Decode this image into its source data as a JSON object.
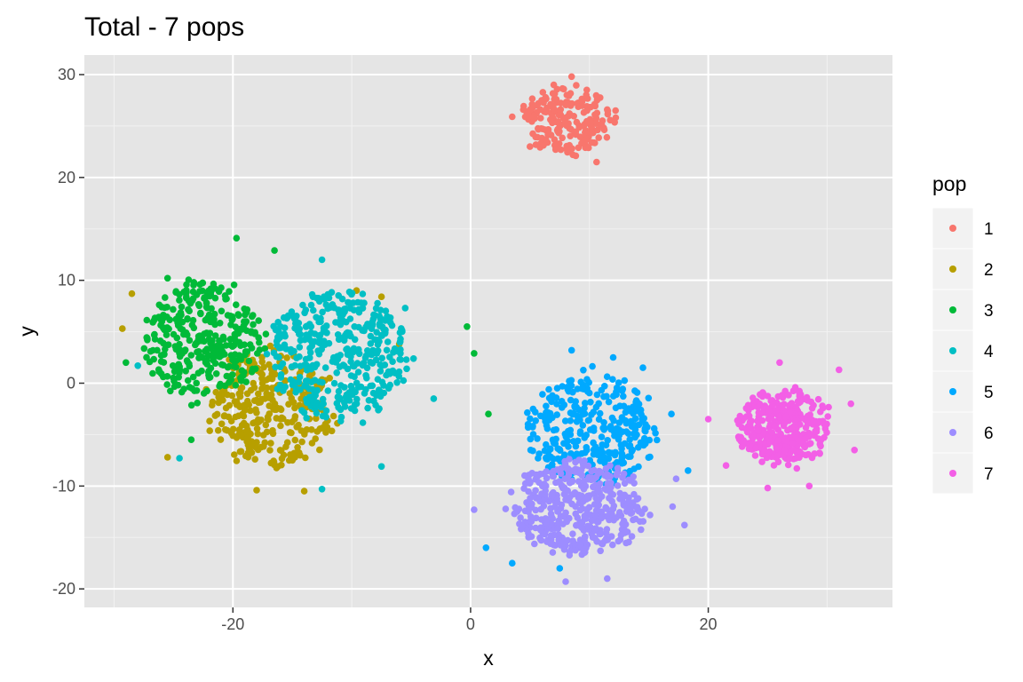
{
  "chart_data": {
    "type": "scatter",
    "title": "Total - 7 pops",
    "xlabel": "x",
    "ylabel": "y",
    "xlim": [
      -32.5,
      35.5
    ],
    "ylim": [
      -21.8,
      31.9
    ],
    "x_ticks": [
      -20,
      0,
      20
    ],
    "y_ticks": [
      -20,
      -10,
      0,
      10,
      20,
      30
    ],
    "x_tick_labels": [
      "-20",
      "0",
      "20"
    ],
    "y_tick_labels": [
      "-20",
      "-10",
      "0",
      "10",
      "20",
      "30"
    ],
    "grid": true,
    "background": "#e5e5e5",
    "legend": {
      "title": "pop",
      "position": "right"
    },
    "series": [
      {
        "name": "1",
        "color": "#F8766D",
        "center": [
          8.2,
          25.5
        ],
        "spread": [
          3.9,
          3.1
        ],
        "count": 200,
        "points": [
          [
            5.0,
            23.0
          ],
          [
            7.0,
            29.0
          ],
          [
            11.5,
            26.6
          ],
          [
            8.5,
            29.8
          ],
          [
            10.6,
            21.5
          ],
          [
            12.2,
            26.5
          ],
          [
            3.5,
            25.9
          ]
        ]
      },
      {
        "name": "2",
        "color": "#B79F00",
        "center": [
          -16.8,
          -2.6
        ],
        "spread": [
          5.2,
          5.7
        ],
        "count": 320,
        "points": [
          [
            -28.5,
            8.7
          ],
          [
            -29.3,
            5.3
          ],
          [
            -25.5,
            -7.2
          ],
          [
            -18.0,
            -10.4
          ],
          [
            -14.0,
            -10.5
          ],
          [
            -6.0,
            3.8
          ],
          [
            -9.6,
            9.0
          ],
          [
            -7.5,
            8.4
          ]
        ]
      },
      {
        "name": "3",
        "color": "#00BA38",
        "center": [
          -22.6,
          4.3
        ],
        "spread": [
          5.0,
          5.6
        ],
        "count": 340,
        "points": [
          [
            -19.7,
            14.1
          ],
          [
            -25.5,
            10.2
          ],
          [
            -29.0,
            2.0
          ],
          [
            -23.5,
            -5.5
          ],
          [
            0.3,
            2.9
          ],
          [
            -0.3,
            5.5
          ],
          [
            1.5,
            -3.0
          ],
          [
            -16.5,
            12.9
          ]
        ]
      },
      {
        "name": "4",
        "color": "#00BFC4",
        "center": [
          -11.3,
          2.7
        ],
        "spread": [
          5.9,
          6.0
        ],
        "count": 400,
        "points": [
          [
            -12.5,
            12.0
          ],
          [
            -5.5,
            7.3
          ],
          [
            -3.1,
            -1.5
          ],
          [
            -12.5,
            -10.3
          ],
          [
            -7.5,
            -8.1
          ],
          [
            -24.5,
            -7.3
          ],
          [
            -28.0,
            1.7
          ]
        ]
      },
      {
        "name": "5",
        "color": "#00A9FF",
        "center": [
          10.1,
          -4.6
        ],
        "spread": [
          5.4,
          5.3
        ],
        "count": 330,
        "points": [
          [
            8.5,
            3.2
          ],
          [
            12.0,
            2.5
          ],
          [
            14.5,
            1.5
          ],
          [
            18.3,
            -8.5
          ],
          [
            1.3,
            -16.0
          ],
          [
            3.5,
            -17.5
          ],
          [
            7.5,
            -18.0
          ],
          [
            16.9,
            -3.0
          ]
        ]
      },
      {
        "name": "6",
        "color": "#9D8DFF",
        "center": [
          9.2,
          -12.1
        ],
        "spread": [
          5.6,
          4.6
        ],
        "count": 420,
        "points": [
          [
            0.3,
            -12.3
          ],
          [
            17.0,
            -12.0
          ],
          [
            8.0,
            -19.3
          ],
          [
            11.5,
            -19.0
          ],
          [
            18.0,
            -13.8
          ],
          [
            17.3,
            -9.3
          ]
        ]
      },
      {
        "name": "7",
        "color": "#F35FE6",
        "center": [
          26.3,
          -4.2
        ],
        "spread": [
          3.9,
          3.8
        ],
        "count": 320,
        "points": [
          [
            20.0,
            -3.5
          ],
          [
            26.0,
            2.0
          ],
          [
            32.0,
            -2.0
          ],
          [
            32.3,
            -6.5
          ],
          [
            25.0,
            -10.2
          ],
          [
            28.5,
            -10.0
          ],
          [
            21.5,
            -8.0
          ],
          [
            31.0,
            1.3
          ]
        ]
      }
    ]
  }
}
